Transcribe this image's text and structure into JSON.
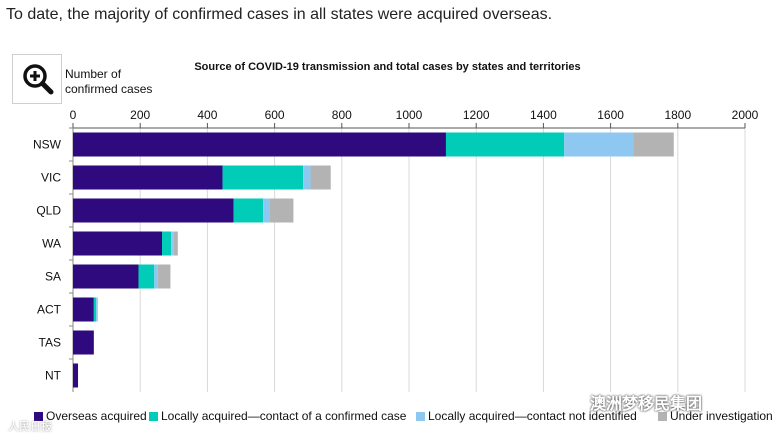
{
  "page": {
    "headline": "To date, the majority of confirmed cases in all states were acquired overseas.",
    "zoom_icon": "zoom-in-icon",
    "watermark_text": "澳洲梦移民集团",
    "watermark_left": "人民日报"
  },
  "chart_data": {
    "type": "bar",
    "orientation": "horizontal",
    "stacked": true,
    "title": "Source of COVID-19 transmission and total cases by states and territories",
    "xlabel": "Number of confirmed cases",
    "ylabel": "",
    "xlim": [
      0,
      2000
    ],
    "xticks": [
      "0",
      "200",
      "400",
      "600",
      "800",
      "1000",
      "1200",
      "1400",
      "1600",
      "1800",
      "2000"
    ],
    "grid": true,
    "legend_position": "bottom",
    "categories": [
      "NSW",
      "VIC",
      "QLD",
      "WA",
      "SA",
      "ACT",
      "TAS",
      "NT"
    ],
    "series": [
      {
        "name": "Overseas acquired",
        "color": "#2e0a7e",
        "values": [
          1110,
          445,
          478,
          265,
          195,
          62,
          62,
          15
        ]
      },
      {
        "name": "Locally acquired—contact of a confirmed case",
        "color": "#00ccb8",
        "values": [
          352,
          240,
          88,
          27,
          47,
          7,
          0,
          0
        ]
      },
      {
        "name": "Locally acquired—contact not identified",
        "color": "#8ec8f0",
        "values": [
          206,
          22,
          18,
          8,
          10,
          5,
          0,
          0
        ]
      },
      {
        "name": "Under investigation",
        "color": "#b3b3b3",
        "values": [
          120,
          60,
          72,
          12,
          38,
          0,
          0,
          0
        ]
      }
    ]
  }
}
